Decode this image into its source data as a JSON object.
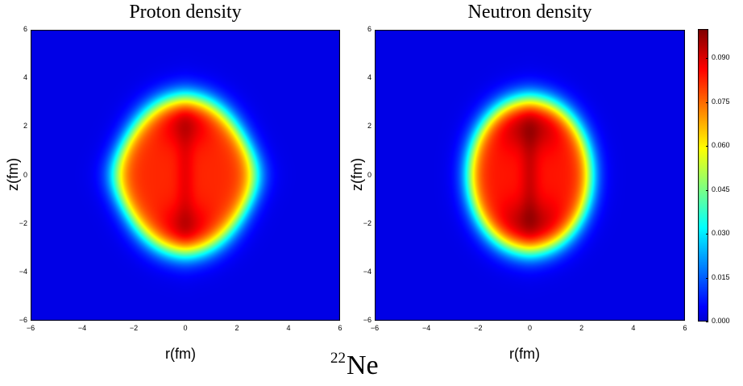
{
  "chart_data": [
    {
      "type": "heatmap",
      "title": "Proton density",
      "xlabel": "r(fm)",
      "ylabel": "z(fm)",
      "xlim": [
        -6,
        6
      ],
      "ylim": [
        -6,
        6
      ],
      "xticks": [
        -6,
        -4,
        -2,
        0,
        2,
        4,
        6
      ],
      "yticks": [
        -6,
        -4,
        -2,
        0,
        2,
        4,
        6
      ],
      "colormap": "jet",
      "value_range": [
        0.0,
        0.1
      ],
      "description_values": {
        "peaks": [
          {
            "r": 0,
            "z": 2.2,
            "value": 0.1
          },
          {
            "r": 0,
            "z": -2.2,
            "value": 0.1
          }
        ],
        "center_value": 0.078,
        "half_extent_r": 2.4,
        "half_extent_z": 3.2
      }
    },
    {
      "type": "heatmap",
      "title": "Neutron density",
      "xlabel": "r(fm)",
      "ylabel": "z(fm)",
      "xlim": [
        -6,
        6
      ],
      "ylim": [
        -6,
        6
      ],
      "xticks": [
        -6,
        -4,
        -2,
        0,
        2,
        4,
        6
      ],
      "yticks": [
        -6,
        -4,
        -2,
        0,
        2,
        4,
        6
      ],
      "colormap": "jet",
      "value_range": [
        0.0,
        0.1
      ],
      "description_values": {
        "peaks": [
          {
            "r": 0,
            "z": 2.0,
            "value": 0.1
          },
          {
            "r": 0,
            "z": -2.0,
            "value": 0.1
          }
        ],
        "center_value": 0.08,
        "half_extent_r": 2.3,
        "half_extent_z": 3.2
      }
    }
  ],
  "colorbar": {
    "ticks": [
      "0.000",
      "0.015",
      "0.030",
      "0.045",
      "0.060",
      "0.075",
      "0.090"
    ],
    "tick_values": [
      0.0,
      0.015,
      0.03,
      0.045,
      0.06,
      0.075,
      0.09
    ],
    "max": 0.1
  },
  "caption": {
    "mass_number": "22",
    "element": "Ne"
  }
}
